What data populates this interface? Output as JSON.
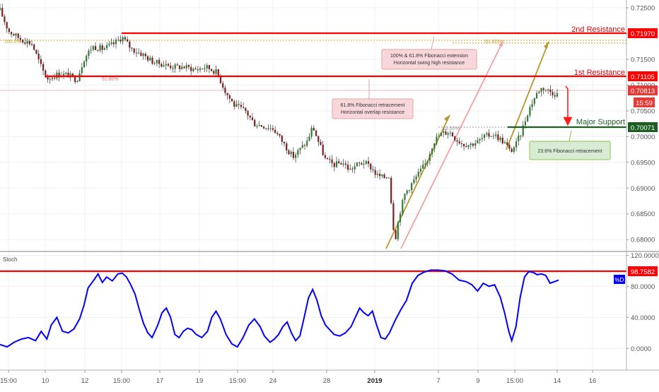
{
  "chart_data": [
    {
      "type": "candlestick",
      "panel": "price",
      "y_axis": {
        "ticks": [
          "0.72500",
          "0.72000",
          "0.71500",
          "0.71000",
          "0.70500",
          "0.70000",
          "0.69500",
          "0.69000",
          "0.68500",
          "0.68000"
        ],
        "tick_values": [
          0.725,
          0.72,
          0.715,
          0.71,
          0.705,
          0.7,
          0.695,
          0.69,
          0.685,
          0.68
        ],
        "range": [
          0.6777,
          0.7265
        ]
      },
      "x_axis": {
        "tick_labels": [
          "15:00",
          "10",
          "12",
          "15:00",
          "17",
          "19",
          "15:00",
          "24",
          "28",
          "2019",
          "7",
          "9",
          "15:00",
          "14",
          "16"
        ]
      },
      "price_path": [
        [
          0,
          0.7245
        ],
        [
          12,
          0.7205
        ],
        [
          28,
          0.719
        ],
        [
          45,
          0.718
        ],
        [
          58,
          0.7135
        ],
        [
          66,
          0.7112
        ],
        [
          80,
          0.712
        ],
        [
          95,
          0.712
        ],
        [
          108,
          0.711
        ],
        [
          118,
          0.715
        ],
        [
          130,
          0.7175
        ],
        [
          145,
          0.717
        ],
        [
          160,
          0.718
        ],
        [
          172,
          0.7193
        ],
        [
          185,
          0.717
        ],
        [
          200,
          0.716
        ],
        [
          215,
          0.7145
        ],
        [
          230,
          0.714
        ],
        [
          245,
          0.7135
        ],
        [
          260,
          0.7135
        ],
        [
          275,
          0.713
        ],
        [
          290,
          0.7135
        ],
        [
          305,
          0.7125
        ],
        [
          318,
          0.7085
        ],
        [
          330,
          0.706
        ],
        [
          345,
          0.705
        ],
        [
          358,
          0.7025
        ],
        [
          372,
          0.702
        ],
        [
          385,
          0.7015
        ],
        [
          400,
          0.6985
        ],
        [
          412,
          0.696
        ],
        [
          422,
          0.6975
        ],
        [
          432,
          0.699
        ],
        [
          440,
          0.702
        ],
        [
          448,
          0.699
        ],
        [
          458,
          0.6955
        ],
        [
          470,
          0.6945
        ],
        [
          482,
          0.695
        ],
        [
          492,
          0.6935
        ],
        [
          502,
          0.6945
        ],
        [
          512,
          0.695
        ],
        [
          522,
          0.694
        ],
        [
          530,
          0.6925
        ],
        [
          540,
          0.692
        ],
        [
          548,
          0.6925
        ],
        [
          552,
          0.684
        ],
        [
          556,
          0.68
        ],
        [
          562,
          0.685
        ],
        [
          570,
          0.689
        ],
        [
          580,
          0.691
        ],
        [
          590,
          0.693
        ],
        [
          600,
          0.695
        ],
        [
          610,
          0.699
        ],
        [
          620,
          0.7005
        ],
        [
          632,
          0.701
        ],
        [
          642,
          0.6995
        ],
        [
          652,
          0.6985
        ],
        [
          662,
          0.6985
        ],
        [
          672,
          0.699
        ],
        [
          682,
          0.7
        ],
        [
          694,
          0.7005
        ],
        [
          704,
          0.6995
        ],
        [
          712,
          0.6985
        ],
        [
          718,
          0.697
        ],
        [
          726,
          0.6985
        ],
        [
          734,
          0.701
        ],
        [
          742,
          0.7045
        ],
        [
          750,
          0.707
        ],
        [
          758,
          0.709
        ],
        [
          764,
          0.7095
        ],
        [
          770,
          0.709
        ],
        [
          778,
          0.7085
        ],
        [
          786,
          0.7081
        ]
      ],
      "levels": [
        {
          "name": "2nd Resistance",
          "value": "0.71970",
          "color": "#ff0000"
        },
        {
          "name": "1st Resistance",
          "value": "0.71105",
          "color": "#ff0000"
        },
        {
          "name": "Major Support",
          "value": "0.70071",
          "color": "#1b5e20"
        }
      ],
      "current_price": {
        "value": "0.70813",
        "countdown": "15:59",
        "color": "#e53935"
      },
      "annotations": [
        {
          "text_lines": [
            "100% & 61.8% Fibonacci extension",
            "Horizontal swing high resistance"
          ],
          "color": "#f8bbd0"
        },
        {
          "text_lines": [
            "61.8% Fibonacci retracement",
            "Horizontal overlap resistance"
          ],
          "color": "#f8bbd0"
        },
        {
          "text_lines": [
            "23.6% Fibonacci retracement"
          ],
          "color": "#c8e6c9"
        }
      ],
      "fib_labels": [
        "100.0%",
        "61.80%",
        "61.80%",
        "23.60%"
      ]
    },
    {
      "type": "line",
      "panel": "stochastic",
      "title": "Stoch",
      "y_axis": {
        "ticks": [
          "120.0000",
          "80.0000",
          "40.0000",
          "0.0000"
        ],
        "tick_values": [
          120,
          80,
          40,
          0
        ],
        "range": [
          -28,
          125
        ]
      },
      "level": {
        "value": "98.7582",
        "color": "#ff0000"
      },
      "series_label": "%D",
      "series_color": "#0000ff",
      "series": [
        [
          0,
          5
        ],
        [
          10,
          2
        ],
        [
          20,
          8
        ],
        [
          30,
          12
        ],
        [
          40,
          14
        ],
        [
          50,
          10
        ],
        [
          58,
          22
        ],
        [
          66,
          12
        ],
        [
          72,
          30
        ],
        [
          80,
          40
        ],
        [
          88,
          22
        ],
        [
          96,
          20
        ],
        [
          104,
          25
        ],
        [
          112,
          38
        ],
        [
          118,
          55
        ],
        [
          124,
          78
        ],
        [
          132,
          88
        ],
        [
          138,
          96
        ],
        [
          144,
          85
        ],
        [
          150,
          92
        ],
        [
          158,
          87
        ],
        [
          166,
          96
        ],
        [
          172,
          97
        ],
        [
          178,
          92
        ],
        [
          184,
          82
        ],
        [
          190,
          70
        ],
        [
          196,
          50
        ],
        [
          202,
          32
        ],
        [
          208,
          20
        ],
        [
          214,
          14
        ],
        [
          222,
          30
        ],
        [
          228,
          46
        ],
        [
          234,
          52
        ],
        [
          240,
          40
        ],
        [
          246,
          18
        ],
        [
          252,
          14
        ],
        [
          258,
          22
        ],
        [
          264,
          26
        ],
        [
          270,
          24
        ],
        [
          276,
          18
        ],
        [
          284,
          14
        ],
        [
          292,
          22
        ],
        [
          298,
          40
        ],
        [
          304,
          48
        ],
        [
          310,
          38
        ],
        [
          318,
          18
        ],
        [
          326,
          6
        ],
        [
          334,
          2
        ],
        [
          342,
          14
        ],
        [
          350,
          30
        ],
        [
          358,
          38
        ],
        [
          366,
          28
        ],
        [
          372,
          16
        ],
        [
          380,
          8
        ],
        [
          386,
          12
        ],
        [
          392,
          18
        ],
        [
          398,
          28
        ],
        [
          404,
          34
        ],
        [
          410,
          20
        ],
        [
          416,
          10
        ],
        [
          422,
          16
        ],
        [
          428,
          40
        ],
        [
          434,
          65
        ],
        [
          440,
          76
        ],
        [
          446,
          62
        ],
        [
          452,
          42
        ],
        [
          458,
          30
        ],
        [
          464,
          24
        ],
        [
          470,
          18
        ],
        [
          478,
          16
        ],
        [
          486,
          20
        ],
        [
          494,
          28
        ],
        [
          500,
          40
        ],
        [
          506,
          52
        ],
        [
          512,
          46
        ],
        [
          518,
          42
        ],
        [
          524,
          48
        ],
        [
          530,
          30
        ],
        [
          536,
          14
        ],
        [
          542,
          12
        ],
        [
          548,
          20
        ],
        [
          556,
          36
        ],
        [
          564,
          50
        ],
        [
          572,
          62
        ],
        [
          580,
          84
        ],
        [
          588,
          94
        ],
        [
          596,
          98
        ],
        [
          606,
          101
        ],
        [
          616,
          101
        ],
        [
          626,
          100
        ],
        [
          636,
          96
        ],
        [
          646,
          88
        ],
        [
          656,
          86
        ],
        [
          664,
          82
        ],
        [
          672,
          74
        ],
        [
          680,
          84
        ],
        [
          688,
          80
        ],
        [
          696,
          82
        ],
        [
          704,
          66
        ],
        [
          710,
          46
        ],
        [
          716,
          22
        ],
        [
          720,
          10
        ],
        [
          726,
          28
        ],
        [
          732,
          66
        ],
        [
          738,
          92
        ],
        [
          744,
          99
        ],
        [
          750,
          98
        ],
        [
          756,
          95
        ],
        [
          762,
          96
        ],
        [
          768,
          94
        ],
        [
          774,
          84
        ],
        [
          780,
          86
        ],
        [
          786,
          88
        ]
      ]
    }
  ]
}
